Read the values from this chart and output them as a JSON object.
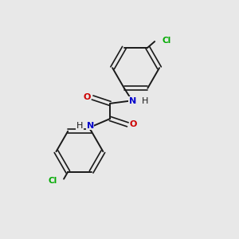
{
  "background_color": "#e8e8e8",
  "bond_color": "#1a1a1a",
  "N_color": "#0000cc",
  "O_color": "#cc0000",
  "Cl_color": "#00aa00",
  "figsize": [
    3.0,
    3.0
  ],
  "dpi": 100,
  "xlim": [
    0,
    10
  ],
  "ylim": [
    0,
    10
  ]
}
